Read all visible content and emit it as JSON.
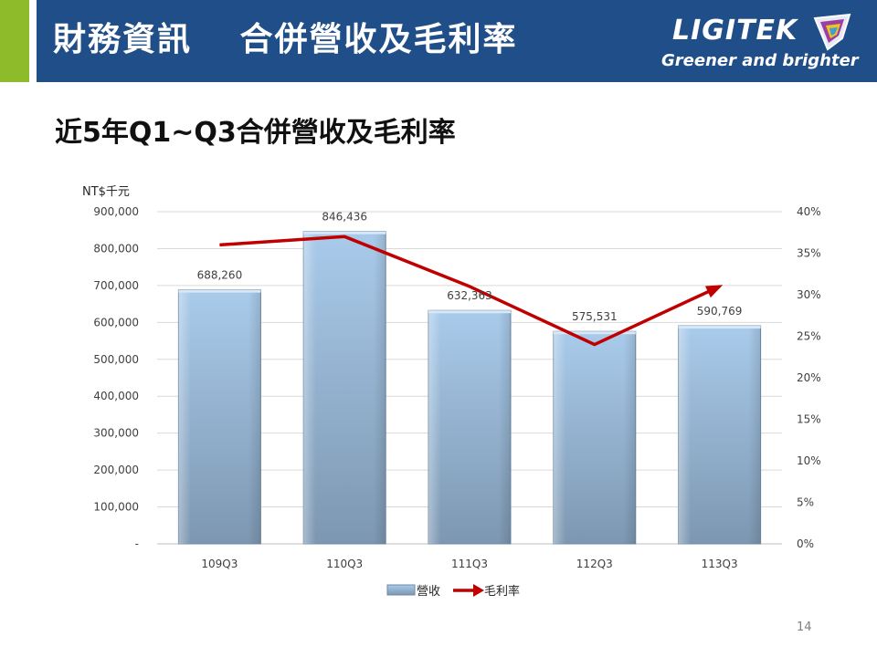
{
  "header": {
    "title": "財務資訊　 合併營收及毛利率",
    "logo_text": "LIGITEK",
    "logo_tagline": "Greener and brighter"
  },
  "slide_title": "近5年Q1~Q3合併營收及毛利率",
  "page_number": "14",
  "colors": {
    "header_bg": "#1f4e89",
    "accent": "#8dbb2a",
    "bar_fill_top": "#a9cbeb",
    "bar_fill_bottom": "#7d97b1",
    "line": "#c00000"
  },
  "chart_data": {
    "type": "bar",
    "categories": [
      "109Q3",
      "110Q3",
      "111Q3",
      "112Q3",
      "113Q3"
    ],
    "series": [
      {
        "name": "營收",
        "type": "bar",
        "axis": "left",
        "values": [
          688260,
          846436,
          632363,
          575531,
          590769
        ],
        "labels": [
          "688,260",
          "846,436",
          "632,363",
          "575,531",
          "590,769"
        ]
      },
      {
        "name": "毛利率",
        "type": "line",
        "axis": "right",
        "values": [
          0.36,
          0.37,
          0.31,
          0.24,
          0.31
        ]
      }
    ],
    "ylabel": "NT$千元",
    "ylim": [
      0,
      900000
    ],
    "y_ticks": [
      "-",
      "100,000",
      "200,000",
      "300,000",
      "400,000",
      "500,000",
      "600,000",
      "700,000",
      "800,000",
      "900,000"
    ],
    "y2lim": [
      0,
      0.4
    ],
    "y2_ticks": [
      "0%",
      "5%",
      "10%",
      "15%",
      "20%",
      "25%",
      "30%",
      "35%",
      "40%"
    ],
    "grid": true,
    "legend": "bottom"
  }
}
